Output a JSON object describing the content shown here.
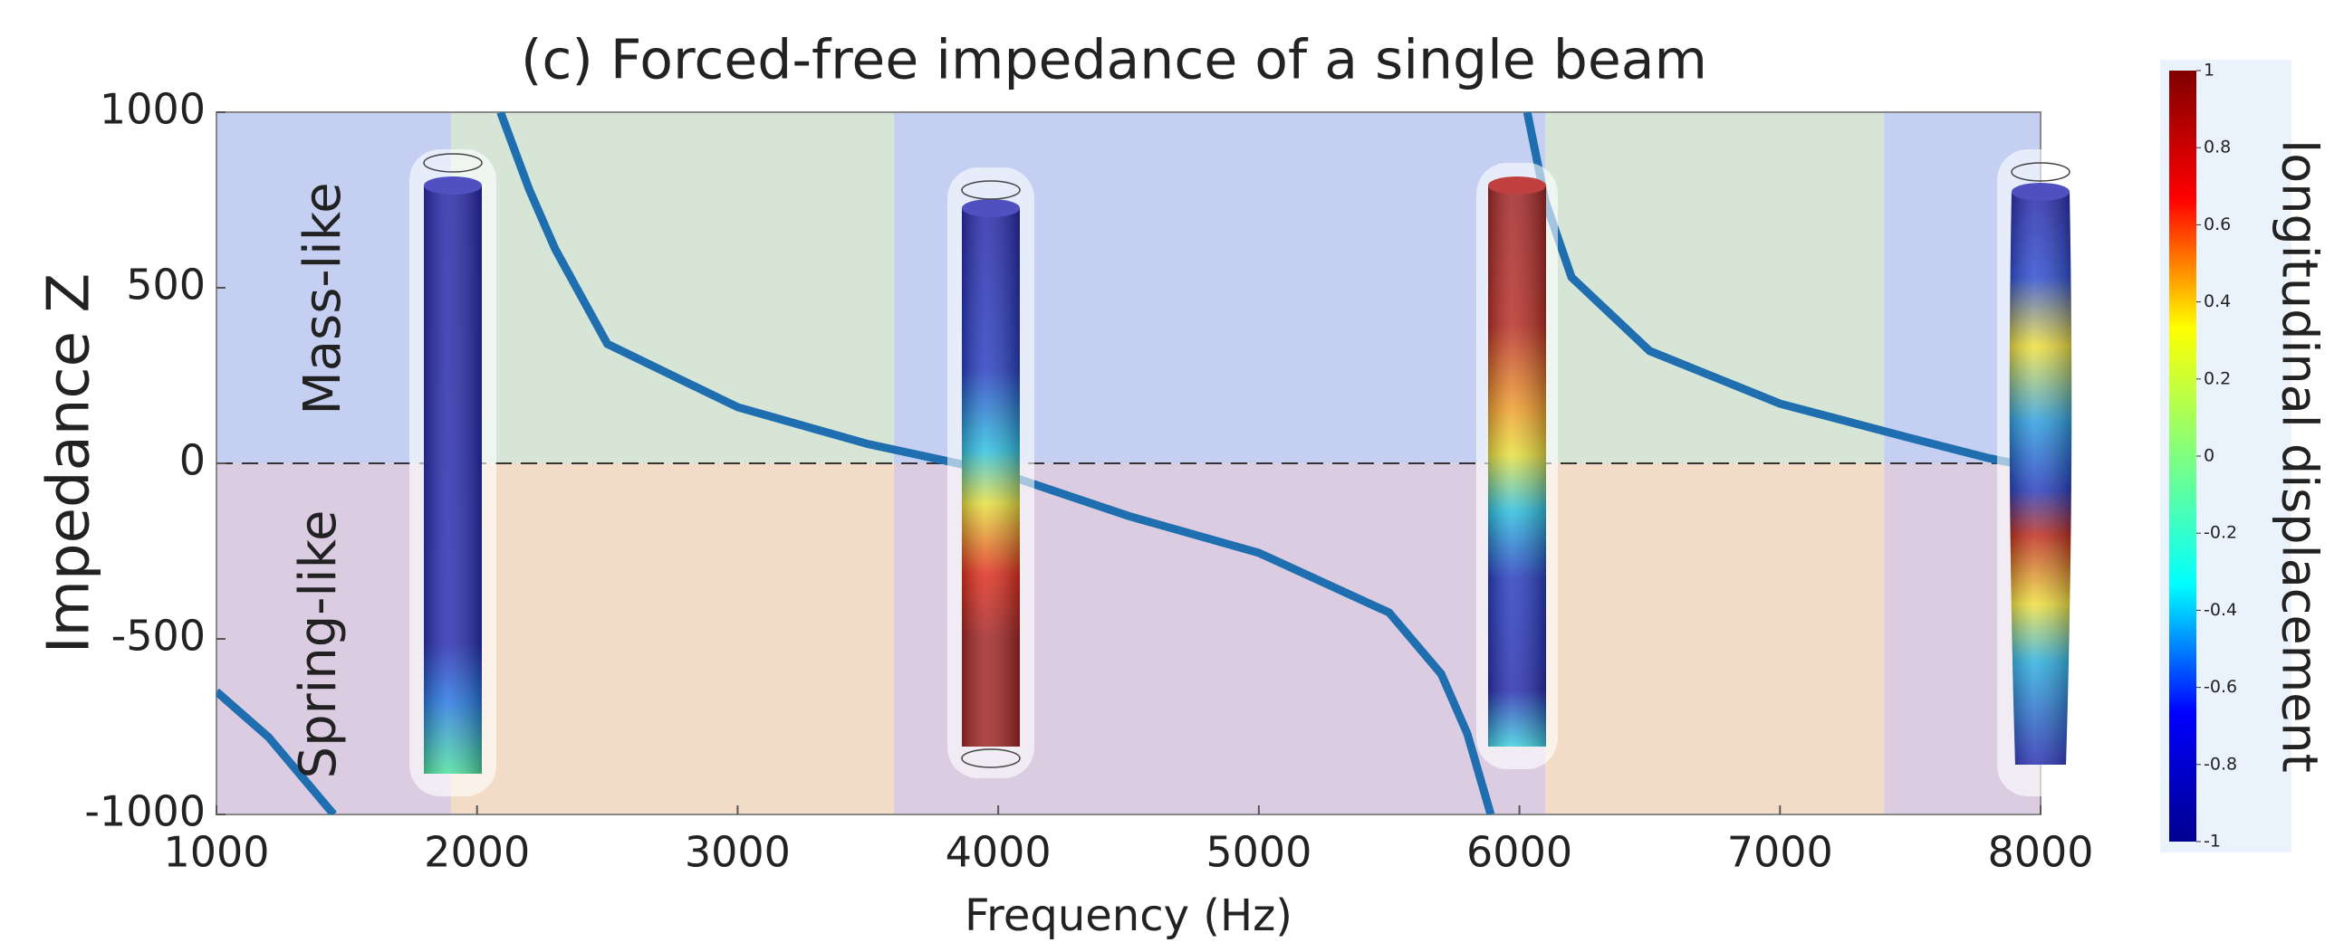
{
  "chart_data": {
    "type": "line",
    "title": "(c) Forced-free impedance of a single beam",
    "x_label": "Frequency (Hz)",
    "y_label": "Impedance Z",
    "annotations": [
      {
        "text": "Mass-like",
        "color": "#2a2ad0"
      },
      {
        "text": "Spring-like",
        "color": "#e8262a"
      }
    ],
    "x": [
      1000,
      1200,
      1450,
      null,
      2090,
      2200,
      2300,
      2500,
      3000,
      3500,
      4000,
      4500,
      5000,
      5500,
      5700,
      5800,
      5890,
      null,
      6030,
      6100,
      6200,
      6500,
      7000,
      7500,
      7800,
      7900
    ],
    "series": [
      {
        "color": "#1f6fb0",
        "values": [
          -650,
          -780,
          -1000,
          null,
          1000,
          780,
          610,
          340,
          160,
          55,
          -25,
          -150,
          -255,
          -425,
          -600,
          -770,
          -1000,
          null,
          1000,
          745,
          530,
          320,
          170,
          72,
          15,
          0
        ]
      }
    ],
    "regions": [
      {
        "x": [
          1000,
          1900
        ],
        "upper_color": "#c4cff2",
        "lower_color": "#dccce2"
      },
      {
        "x": [
          1900,
          3600
        ],
        "upper_color": "#d6e5d6",
        "lower_color": "#f3dcc7"
      },
      {
        "x": [
          3600,
          6100
        ],
        "upper_color": "#c4cff2",
        "lower_color": "#dccce2"
      },
      {
        "x": [
          6100,
          7400
        ],
        "upper_color": "#d6e5d6",
        "lower_color": "#f3dcc7"
      },
      {
        "x": [
          7400,
          8000
        ],
        "upper_color": "#c4cff2",
        "lower_color": "#dccce2"
      }
    ],
    "reference_line": 0,
    "xlim": [
      1000,
      8000
    ],
    "xticks": [
      1000,
      2000,
      3000,
      4000,
      5000,
      6000,
      7000,
      8000
    ],
    "ylim": [
      -1000,
      1000
    ],
    "yticks": [
      -1000,
      -500,
      0,
      500,
      1000
    ],
    "colorbar": {
      "label": "longitudinal displacement",
      "lim": [
        -1,
        1
      ],
      "ticks": [
        1,
        0.8,
        0.6,
        0.4,
        0.2,
        0,
        -0.2,
        -0.4,
        -0.6,
        -0.8,
        -1
      ],
      "colors": [
        "#00008f",
        "#0000ff",
        "#00ffff",
        "#80ff80",
        "#ffff00",
        "#ff0000",
        "#800000"
      ]
    }
  }
}
